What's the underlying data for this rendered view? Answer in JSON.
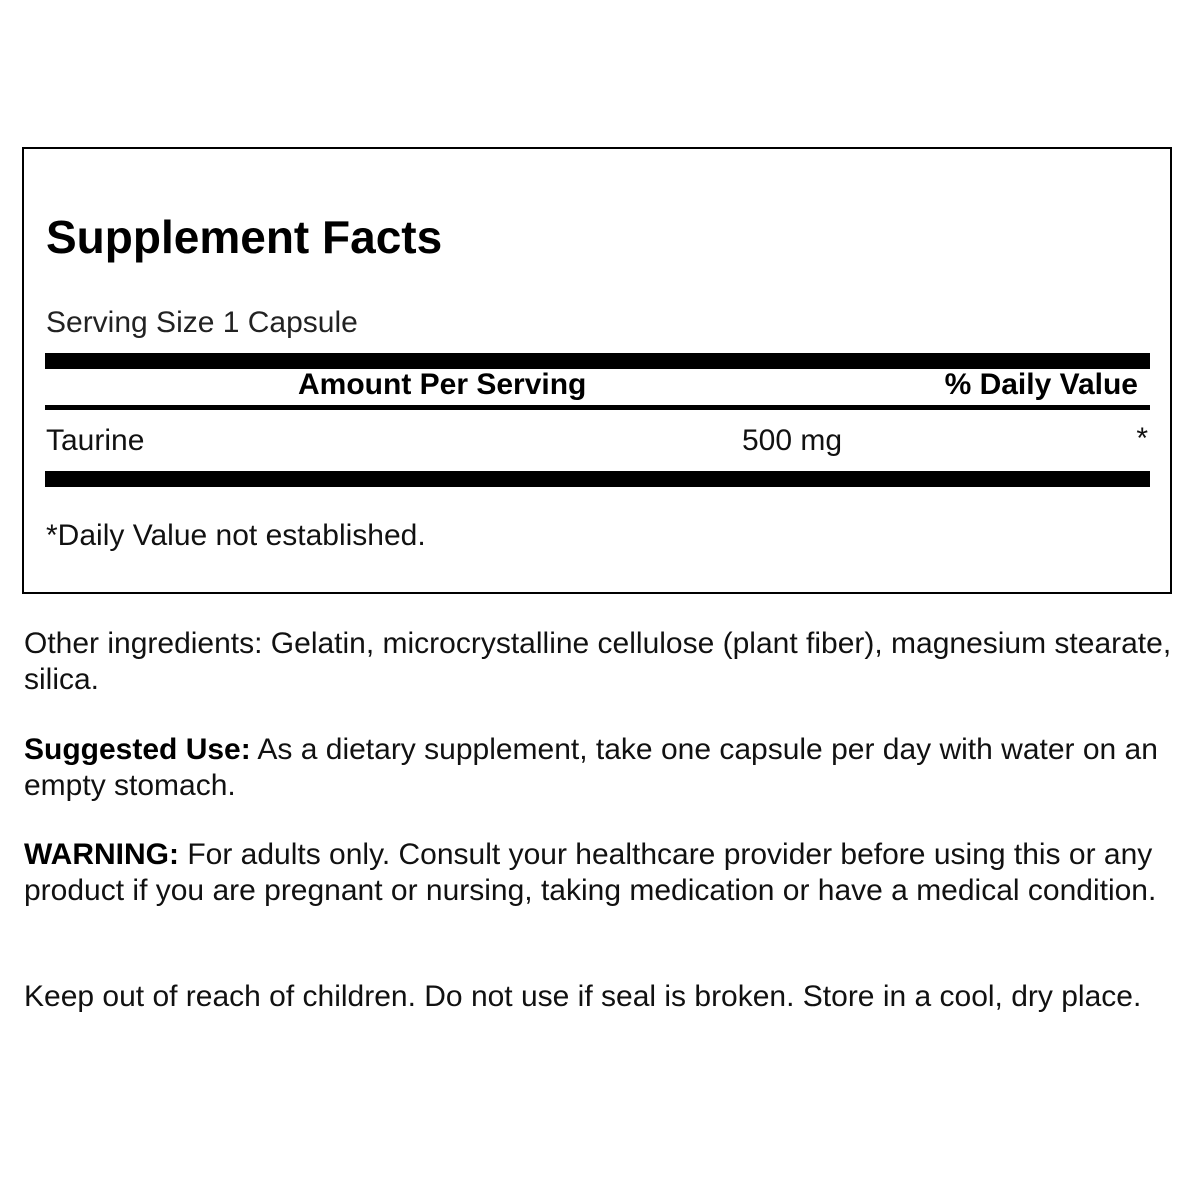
{
  "facts": {
    "title": "Supplement Facts",
    "serving_size": "Serving Size 1 Capsule",
    "header_amount": "Amount Per Serving",
    "header_dv": "% Daily Value",
    "rows": [
      {
        "name": "Taurine",
        "amount": "500 mg",
        "dv": "*"
      }
    ],
    "footnote": "*Daily Value not established."
  },
  "other_ingredients": "Other ingredients: Gelatin, microcrystalline cellulose (plant fiber), magnesium stearate, silica.",
  "suggested_use": {
    "label": "Suggested Use:",
    "text": " As a dietary supplement, take one capsule per day with water on an empty stomach."
  },
  "warning": {
    "label": "WARNING:",
    "text": " For adults only. Consult your healthcare provider before using this or any product if you are pregnant or nursing, taking medication or have a medical condition."
  },
  "storage": "Keep out of reach of children. Do not use if seal is broken. Store in a cool, dry place."
}
